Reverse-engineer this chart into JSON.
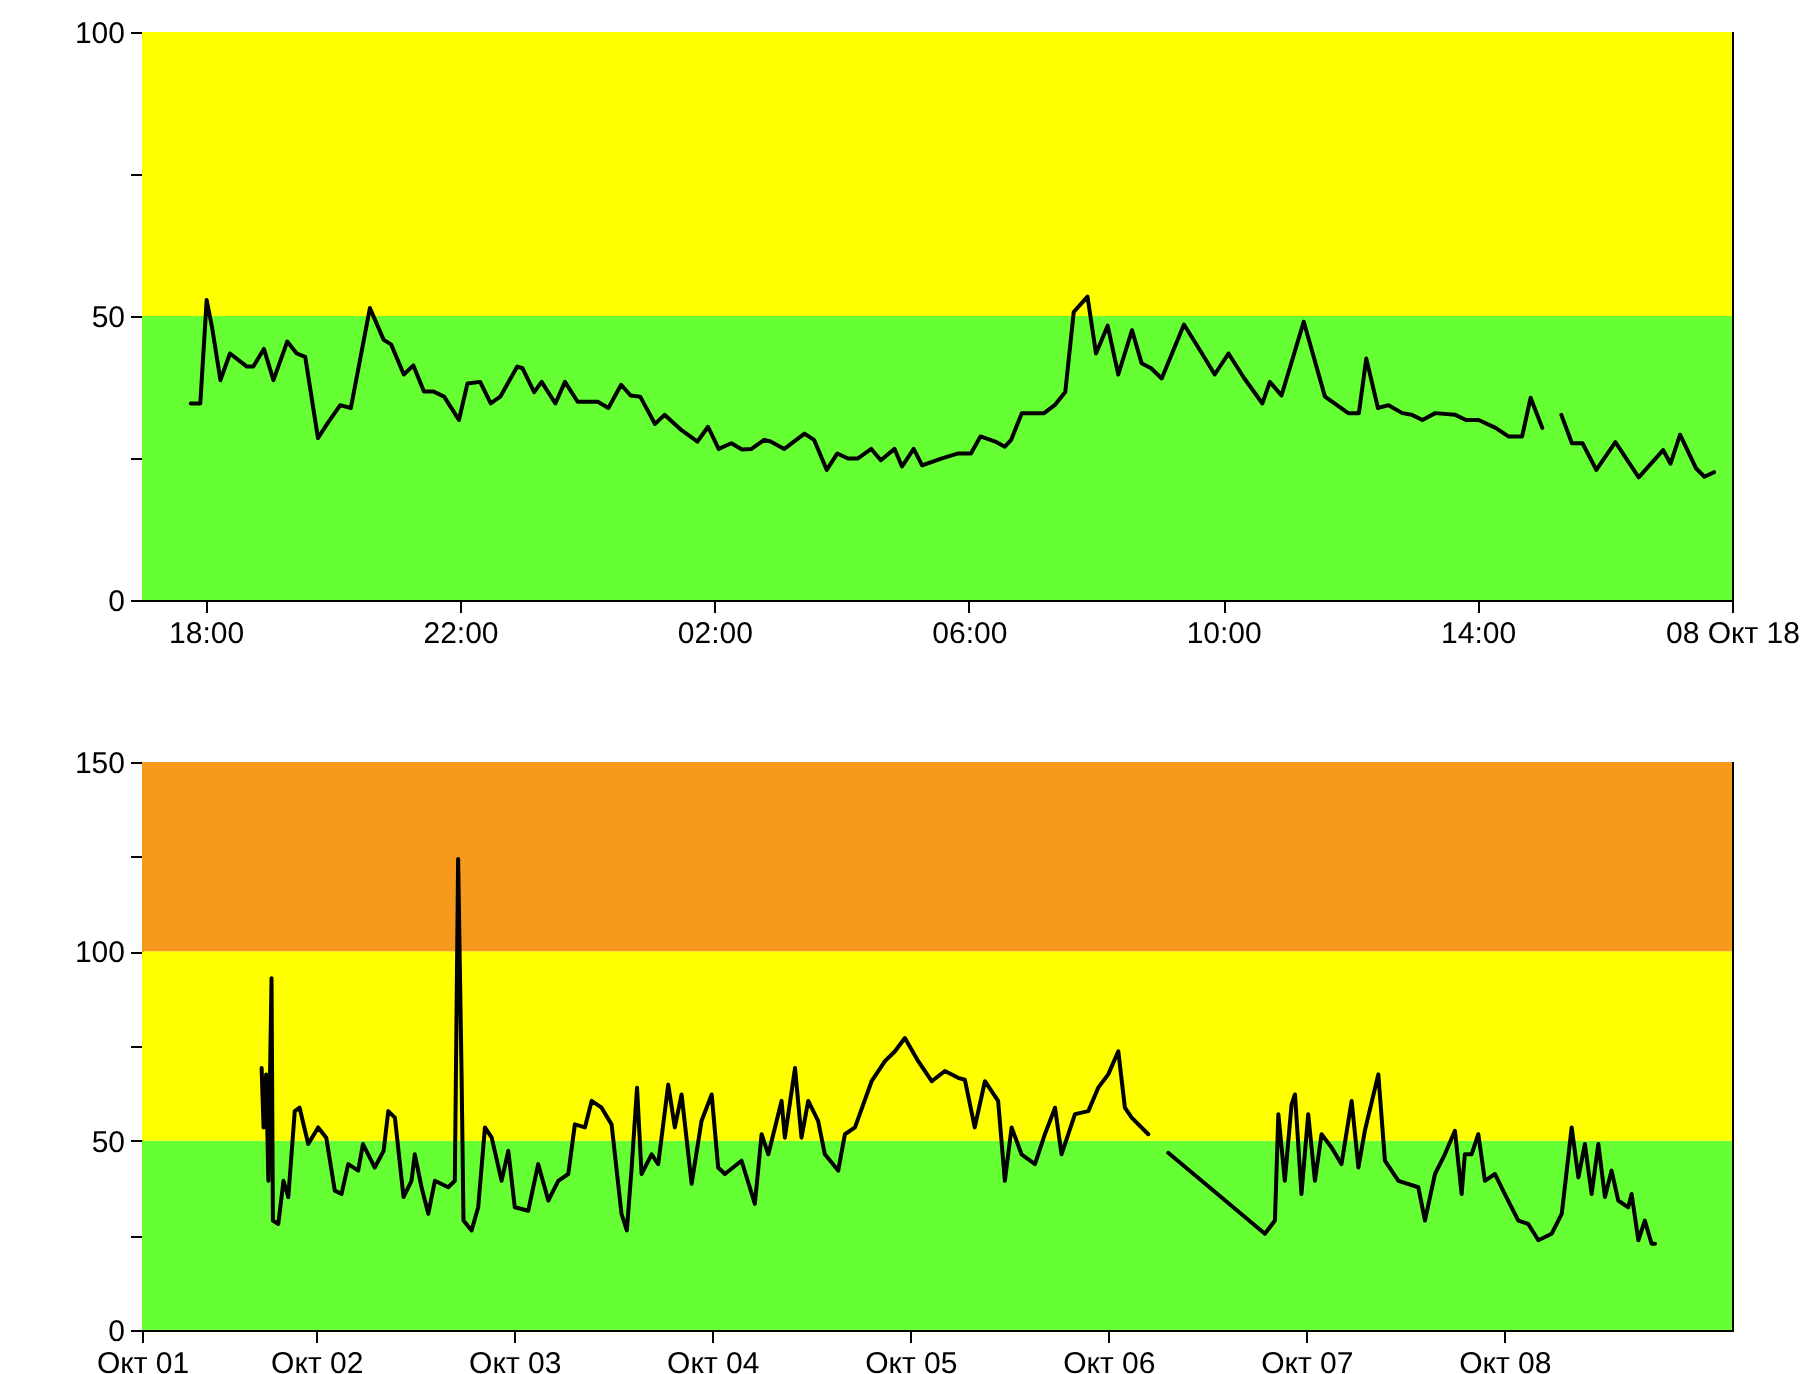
{
  "chart_data": [
    {
      "type": "line",
      "xlim": [
        "--10-07T17:00",
        "--10-08T18:00"
      ],
      "ylim": [
        0,
        100
      ],
      "xticks": [
        {
          "value": "--10-07T18:00",
          "label": "18:00"
        },
        {
          "value": "--10-07T22:00",
          "label": "22:00"
        },
        {
          "value": "--10-08T02:00",
          "label": "02:00"
        },
        {
          "value": "--10-08T06:00",
          "label": "06:00"
        },
        {
          "value": "--10-08T10:00",
          "label": "10:00"
        },
        {
          "value": "--10-08T14:00",
          "label": "14:00"
        },
        {
          "value": "--10-08T18:00",
          "label": "08 Окт 18"
        }
      ],
      "yticks": [
        0,
        {
          "value": 25,
          "label": null
        },
        50,
        {
          "value": 75,
          "label": null
        },
        100
      ],
      "grid": false,
      "bands": [
        {
          "axis": "y",
          "from": 0,
          "to": 50,
          "color": "#66ff33"
        },
        {
          "axis": "y",
          "from": 50,
          "to": 100,
          "color": "#ffff00"
        }
      ],
      "x": [
        "--10-07T17:46",
        "--10-07T17:55",
        "--10-07T18:01",
        "--10-07T18:06",
        "--10-07T18:14",
        "--10-07T18:23",
        "--10-07T18:39",
        "--10-07T18:45",
        "--10-07T18:55",
        "--10-07T19:04",
        "--10-07T19:17",
        "--10-07T19:26",
        "--10-07T19:34",
        "--10-07T19:46",
        "--10-07T19:55",
        "--10-07T20:07",
        "--10-07T20:17",
        "--10-07T20:35",
        "--10-07T20:48",
        "--10-07T20:55",
        "--10-07T21:07",
        "--10-07T21:16",
        "--10-07T21:26",
        "--10-07T21:35",
        "--10-07T21:45",
        "--10-07T21:59",
        "--10-07T22:07",
        "--10-07T22:19",
        "--10-07T22:29",
        "--10-07T22:38",
        "--10-07T22:54",
        "--10-07T22:59",
        "--10-07T23:10",
        "--10-07T23:17",
        "--10-07T23:30",
        "--10-07T23:39",
        "--10-07T23:51",
        "--10-08T00:10",
        "--10-08T00:20",
        "--10-08T00:32",
        "--10-08T00:41",
        "--10-08T00:50",
        "--10-08T01:04",
        "--10-08T01:13",
        "--10-08T01:29",
        "--10-08T01:44",
        "--10-08T01:54",
        "--10-08T02:04",
        "--10-08T02:16",
        "--10-08T02:26",
        "--10-08T02:35",
        "--10-08T02:47",
        "--10-08T02:53",
        "--10-08T03:06",
        "--10-08T03:25",
        "--10-08T03:34",
        "--10-08T03:46",
        "--10-08T03:56",
        "--10-08T04:06",
        "--10-08T04:15",
        "--10-08T04:28",
        "--10-08T04:37",
        "--10-08T04:50",
        "--10-08T04:57",
        "--10-08T05:08",
        "--10-08T05:16",
        "--10-08T05:34",
        "--10-08T05:50",
        "--10-08T06:02",
        "--10-08T06:11",
        "--10-08T06:25",
        "--10-08T06:34",
        "--10-08T06:40",
        "--10-08T06:50",
        "--10-08T07:11",
        "--10-08T07:21",
        "--10-08T07:31",
        "--10-08T07:39",
        "--10-08T07:52",
        "--10-08T08:00",
        "--10-08T08:11",
        "--10-08T08:21",
        "--10-08T08:34",
        "--10-08T08:43",
        "--10-08T08:52",
        "--10-08T09:02",
        "--10-08T09:23",
        "--10-08T09:40",
        "--10-08T09:52",
        "--10-08T10:05",
        "--10-08T10:20",
        "--10-08T10:37",
        "--10-08T10:44",
        "--10-08T10:55",
        "--10-08T11:16",
        "--10-08T11:36",
        "--10-08T11:58",
        "--10-08T12:08",
        "--10-08T12:15",
        "--10-08T12:26",
        "--10-08T12:36",
        "--10-08T12:49",
        "--10-08T12:58",
        "--10-08T13:08",
        "--10-08T13:20",
        "--10-08T13:39",
        "--10-08T13:49",
        "--10-08T14:01",
        "--10-08T14:17",
        "--10-08T14:29",
        "--10-08T14:42",
        "--10-08T14:50",
        "--10-08T15:01",
        "--10-08T15:09",
        "--10-08T15:19",
        "--10-08T15:29",
        "--10-08T15:39",
        "--10-08T15:52",
        "--10-08T16:10",
        "--10-08T16:32",
        "--10-08T16:55",
        "--10-08T17:02",
        "--10-08T17:11",
        "--10-08T17:26",
        "--10-08T17:34",
        "--10-08T17:43"
      ],
      "series": [
        {
          "color": "#000000",
          "values": [
            34.6,
            34.6,
            52.8,
            48.1,
            38.7,
            43.4,
            41.1,
            41.1,
            44.2,
            38.7,
            45.5,
            43.4,
            42.8,
            28.5,
            31.1,
            34.3,
            33.8,
            51.4,
            45.8,
            45.0,
            39.7,
            41.3,
            36.7,
            36.7,
            35.8,
            31.7,
            38.1,
            38.4,
            34.6,
            35.8,
            41.1,
            40.8,
            36.6,
            38.4,
            34.6,
            38.4,
            34.9,
            34.9,
            33.8,
            37.9,
            36.0,
            35.8,
            31.0,
            32.6,
            29.9,
            27.9,
            30.5,
            26.6,
            27.6,
            26.5,
            26.6,
            28.2,
            27.9,
            26.6,
            29.3,
            28.2,
            22.9,
            25.8,
            24.9,
            24.9,
            26.6,
            24.6,
            26.6,
            23.5,
            26.6,
            23.7,
            24.9,
            25.8,
            25.8,
            28.8,
            27.9,
            27.0,
            28.2,
            32.9,
            32.9,
            34.3,
            36.6,
            50.7,
            53.4,
            43.4,
            48.3,
            39.7,
            47.5,
            41.7,
            40.8,
            39.0,
            48.5,
            43.4,
            39.7,
            43.4,
            39.0,
            34.6,
            38.4,
            36.0,
            49.0,
            35.8,
            32.9,
            32.9,
            42.5,
            33.8,
            34.3,
            32.9,
            32.6,
            31.7,
            32.9,
            32.6,
            31.7,
            31.7,
            30.3,
            28.8,
            28.8,
            35.6,
            30.3,
            null,
            32.6,
            27.6,
            27.6,
            22.9,
            27.8,
            21.6,
            26.4,
            24.0,
            29.1,
            23.2,
            21.7,
            22.5
          ]
        }
      ]
    },
    {
      "type": "line",
      "xlim": [
        "--10-01T02:53",
        "--10-09T03:36"
      ],
      "ylim": [
        0,
        150
      ],
      "xticks": [
        {
          "value": "--10-01T02:53",
          "label": "Окт 01"
        },
        {
          "value": "--10-02",
          "label": "Окт 02"
        },
        {
          "value": "--10-03",
          "label": "Окт 03"
        },
        {
          "value": "--10-04",
          "label": "Окт 04"
        },
        {
          "value": "--10-05",
          "label": "Окт 05"
        },
        {
          "value": "--10-06",
          "label": "Окт 06"
        },
        {
          "value": "--10-07",
          "label": "Окт 07"
        },
        {
          "value": "--10-08",
          "label": "Окт 08"
        }
      ],
      "yticks": [
        0,
        {
          "value": 25,
          "label": null
        },
        50,
        {
          "value": 75,
          "label": null
        },
        100,
        {
          "value": 125,
          "label": null
        },
        150
      ],
      "grid": false,
      "bands": [
        {
          "axis": "y",
          "from": 0,
          "to": 50,
          "color": "#66ff33"
        },
        {
          "axis": "y",
          "from": 50,
          "to": 100,
          "color": "#ffff00"
        },
        {
          "axis": "y",
          "from": 100,
          "to": 150,
          "color": "#f7991c"
        }
      ],
      "x": [
        "--10-01T17:23",
        "--10-01T17:37",
        "--10-01T17:56",
        "--10-01T18:12",
        "--10-01T18:35",
        "--10-01T18:45",
        "--10-01T19:24",
        "--10-01T20:02",
        "--10-01T20:37",
        "--10-01T21:24",
        "--10-01T21:59",
        "--10-01T23:02",
        "--10-02T00:14",
        "--10-02T01:13",
        "--10-02T02:15",
        "--10-02T03:04",
        "--10-02T03:53",
        "--10-02T05:05",
        "--10-02T05:40",
        "--10-02T07:06",
        "--10-02T08:10",
        "--10-02T08:44",
        "--10-02T09:32",
        "--10-02T10:35",
        "--10-02T11:33",
        "--10-02T11:57",
        "--10-02T12:46",
        "--10-02T13:35",
        "--10-02T14:23",
        "--10-02T16:00",
        "--10-02T16:48",
        "--10-02T17:12",
        "--10-02T17:37",
        "--10-02T17:51",
        "--10-02T18:50",
        "--10-02T19:38",
        "--10-02T20:27",
        "--10-02T21:16",
        "--10-02T22:28",
        "--10-02T23:17",
        "--10-03T00:04",
        "--10-03T01:42",
        "--10-03T02:54",
        "--10-03T04:08",
        "--10-03T05:20",
        "--10-03T06:33",
        "--10-03T07:21",
        "--10-03T08:34",
        "--10-03T09:23",
        "--10-03T10:35",
        "--10-03T11:48",
        "--10-03T13:00",
        "--10-03T13:39",
        "--10-03T14:14",
        "--10-03T14:53",
        "--10-03T15:26",
        "--10-03T16:39",
        "--10-03T17:27",
        "--10-03T18:40",
        "--10-03T19:28",
        "--10-03T20:17",
        "--10-03T21:30",
        "--10-03T22:42",
        "--10-03T23:56",
        "--10-04T00:43",
        "--10-04T01:32",
        "--10-04T03:33",
        "--10-04T05:10",
        "--10-04T05:59",
        "--10-04T06:48",
        "--10-04T08:24",
        "--10-04T08:48",
        "--10-04T10:02",
        "--10-04T10:49",
        "--10-04T11:38",
        "--10-04T12:50",
        "--10-04T13:39",
        "--10-04T15:16",
        "--10-04T16:05",
        "--10-04T17:18",
        "--10-04T19:19",
        "--10-04T20:56",
        "--10-04T22:09",
        "--10-04T23:21",
        "--10-05T00:58",
        "--10-05T02:36",
        "--10-05T04:12",
        "--10-05T05:48",
        "--10-05T06:37",
        "--10-05T07:49",
        "--10-05T09:03",
        "--10-05T10:39",
        "--10-05T11:28",
        "--10-05T12:17",
        "--10-05T13:29",
        "--10-05T15:07",
        "--10-05T16:19",
        "--10-05T17:33",
        "--10-05T18:20",
        "--10-05T19:58",
        "--10-05T21:35",
        "--10-05T22:47",
        "--10-06T00:00",
        "--10-06T01:13",
        "--10-06T02:01",
        "--10-06T02:50",
        "--10-06T04:51",
        "--10-06T06:00",
        "--10-06T07:16",
        "--10-06T18:59",
        "--10-06T20:12",
        "--10-06T20:37",
        "--10-06T21:24",
        "--10-06T22:13",
        "--10-06T22:38",
        "--10-06T23:25",
        "--10-07T00:14",
        "--10-07T01:03",
        "--10-07T01:51",
        "--10-07T03:04",
        "--10-07T04:16",
        "--10-07T05:30",
        "--10-07T06:19",
        "--10-07T07:06",
        "--10-07T08:44",
        "--10-07T09:32",
        "--10-07T11:10",
        "--10-07T13:35",
        "--10-07T14:23",
        "--10-07T15:36",
        "--10-07T16:48",
        "--10-07T18:01",
        "--10-07T18:50",
        "--10-07T19:13",
        "--10-07T20:02",
        "--10-07T20:51",
        "--10-07T21:39",
        "--10-07T22:52",
        "--10-08T00:04",
        "--10-08T01:42",
        "--10-08T02:54",
        "--10-08T04:08",
        "--10-08T05:44",
        "--10-08T06:58",
        "--10-08T08:10",
        "--10-08T08:59",
        "--10-08T09:46",
        "--10-08T10:35",
        "--10-08T11:24",
        "--10-08T12:12",
        "--10-08T13:00",
        "--10-08T13:49",
        "--10-08T15:01",
        "--10-08T15:26",
        "--10-08T16:15",
        "--10-08T17:02",
        "--10-08T17:51",
        "--10-08T18:16"
      ],
      "series": [
        {
          "color": "#000000",
          "values": [
            69.2,
            53.5,
            67.5,
            39.4,
            92.9,
            28.9,
            28.0,
            39.4,
            35.1,
            57.8,
            58.7,
            49.1,
            53.5,
            50.8,
            36.8,
            35.9,
            43.8,
            42.1,
            49.1,
            42.9,
            47.3,
            57.8,
            56.1,
            35.1,
            39.4,
            46.4,
            37.7,
            30.7,
            39.4,
            37.7,
            39.4,
            124.4,
            67.5,
            28.9,
            26.3,
            32.4,
            53.5,
            50.8,
            39.4,
            47.3,
            32.4,
            31.5,
            43.8,
            34.2,
            39.4,
            41.2,
            54.3,
            53.5,
            60.5,
            58.7,
            54.3,
            30.7,
            26.3,
            42.9,
            64.0,
            41.2,
            46.4,
            43.8,
            64.8,
            53.5,
            62.2,
            38.6,
            55.2,
            62.2,
            42.9,
            41.2,
            44.7,
            33.3,
            51.7,
            46.4,
            60.5,
            50.8,
            69.2,
            50.8,
            60.5,
            55.2,
            46.4,
            42.1,
            51.7,
            53.5,
            65.7,
            71.0,
            73.6,
            77.1,
            71.0,
            65.7,
            68.4,
            66.6,
            66.1,
            53.5,
            65.7,
            60.5,
            39.4,
            53.5,
            46.4,
            43.8,
            51.7,
            58.7,
            46.4,
            57.0,
            57.8,
            64.0,
            67.5,
            73.6,
            58.7,
            56.1,
            51.7,
            null,
            46.8,
            25.4,
            28.9,
            57.0,
            39.4,
            59.6,
            62.2,
            35.9,
            57.0,
            39.4,
            51.7,
            48.2,
            43.8,
            60.5,
            42.9,
            52.6,
            67.5,
            44.7,
            39.4,
            37.7,
            28.9,
            41.2,
            46.4,
            52.6,
            35.9,
            46.4,
            46.4,
            51.7,
            39.4,
            41.2,
            35.9,
            28.9,
            28.0,
            23.7,
            25.4,
            30.7,
            53.5,
            40.3,
            49.1,
            35.9,
            49.1,
            35.1,
            42.1,
            34.2,
            32.4,
            35.9,
            23.7,
            28.9,
            22.8,
            22.8
          ]
        }
      ]
    }
  ]
}
